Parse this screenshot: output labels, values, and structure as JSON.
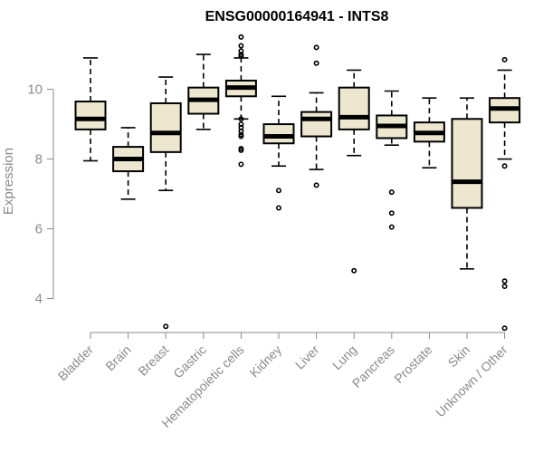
{
  "chart_data": {
    "type": "box",
    "title": "ENSG00000164941 - INTS8",
    "ylabel": "Expression",
    "xlabel": "",
    "ylim": [
      3,
      11.6
    ],
    "yticks": [
      4,
      6,
      8,
      10
    ],
    "grid": false,
    "colors": {
      "box_fill": "#ede7cf",
      "box_stroke": "#000000",
      "median": "#000000",
      "axis": "#8a8a8a",
      "text": "#8a8a8a"
    },
    "categories": [
      "Bladder",
      "Brain",
      "Breast",
      "Gastric",
      "Hematopoietic cells",
      "Kidney",
      "Liver",
      "Lung",
      "Pancreas",
      "Prostate",
      "Skin",
      "Unknown / Other"
    ],
    "boxes": [
      {
        "category": "Bladder",
        "whisker_low": 7.95,
        "q1": 8.85,
        "median": 9.15,
        "q3": 9.65,
        "whisker_high": 10.9,
        "outliers": []
      },
      {
        "category": "Brain",
        "whisker_low": 6.85,
        "q1": 7.65,
        "median": 8.0,
        "q3": 8.35,
        "whisker_high": 8.9,
        "outliers": []
      },
      {
        "category": "Breast",
        "whisker_low": 7.1,
        "q1": 8.2,
        "median": 8.75,
        "q3": 9.6,
        "whisker_high": 10.35,
        "outliers": [
          3.2
        ]
      },
      {
        "category": "Gastric",
        "whisker_low": 8.85,
        "q1": 9.3,
        "median": 9.7,
        "q3": 10.05,
        "whisker_high": 11.0,
        "outliers": []
      },
      {
        "category": "Hematopoietic cells",
        "whisker_low": 9.15,
        "q1": 9.8,
        "median": 10.05,
        "q3": 10.25,
        "whisker_high": 10.9,
        "outliers": [
          11.5,
          11.25,
          11.1,
          11.0,
          10.95,
          9.15,
          9.0,
          8.9,
          8.8,
          8.7,
          8.65,
          8.3,
          8.25,
          7.85
        ]
      },
      {
        "category": "Kidney",
        "whisker_low": 7.8,
        "q1": 8.45,
        "median": 8.65,
        "q3": 9.0,
        "whisker_high": 9.8,
        "outliers": [
          7.1,
          6.6
        ]
      },
      {
        "category": "Liver",
        "whisker_low": 7.7,
        "q1": 8.65,
        "median": 9.15,
        "q3": 9.35,
        "whisker_high": 9.9,
        "outliers": [
          11.2,
          10.75,
          7.25
        ]
      },
      {
        "category": "Lung",
        "whisker_low": 8.1,
        "q1": 8.85,
        "median": 9.2,
        "q3": 10.05,
        "whisker_high": 10.55,
        "outliers": [
          4.8
        ]
      },
      {
        "category": "Pancreas",
        "whisker_low": 8.4,
        "q1": 8.6,
        "median": 8.95,
        "q3": 9.25,
        "whisker_high": 9.95,
        "outliers": [
          7.05,
          6.45,
          6.05
        ]
      },
      {
        "category": "Prostate",
        "whisker_low": 7.75,
        "q1": 8.5,
        "median": 8.75,
        "q3": 9.05,
        "whisker_high": 9.75,
        "outliers": []
      },
      {
        "category": "Skin",
        "whisker_low": 4.85,
        "q1": 6.6,
        "median": 7.35,
        "q3": 9.15,
        "whisker_high": 9.75,
        "outliers": []
      },
      {
        "category": "Unknown / Other",
        "whisker_low": 8.0,
        "q1": 9.05,
        "median": 9.45,
        "q3": 9.75,
        "whisker_high": 10.55,
        "outliers": [
          10.85,
          7.8,
          4.5,
          4.35,
          3.15
        ]
      }
    ]
  }
}
